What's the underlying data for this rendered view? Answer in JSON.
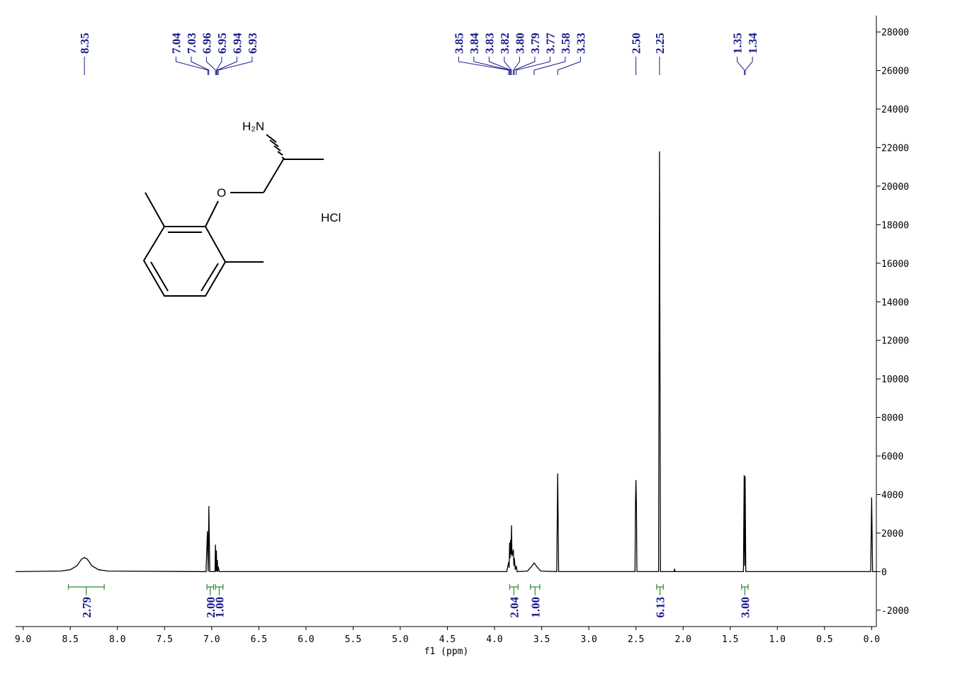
{
  "chart_data": {
    "type": "nmr",
    "x_label": "f1 (ppm)",
    "line_color": "#000000",
    "label_color": "#1a1a8c",
    "integral_color": "#2e8b2e",
    "xlim": [
      9.08,
      -0.05
    ],
    "xticks": [
      {
        "value": 9,
        "label": "9.0"
      },
      {
        "value": 8.5,
        "label": "8.5"
      },
      {
        "value": 8,
        "label": "8.0"
      },
      {
        "value": 7.5,
        "label": "7.5"
      },
      {
        "value": 7,
        "label": "7.0"
      },
      {
        "value": 6.5,
        "label": "6.5"
      },
      {
        "value": 6,
        "label": "6.0"
      },
      {
        "value": 5.5,
        "label": "5.5"
      },
      {
        "value": 5,
        "label": "5.0"
      },
      {
        "value": 4.5,
        "label": "4.5"
      },
      {
        "value": 4,
        "label": "4.0"
      },
      {
        "value": 3.5,
        "label": "3.5"
      },
      {
        "value": 3,
        "label": "3.0"
      },
      {
        "value": 2.5,
        "label": "2.5"
      },
      {
        "value": 2,
        "label": "2.0"
      },
      {
        "value": 1.5,
        "label": "1.5"
      },
      {
        "value": 1,
        "label": "1.0"
      },
      {
        "value": 0.5,
        "label": "0.5"
      },
      {
        "value": 0,
        "label": "0.0"
      }
    ],
    "ylim": [
      -2850,
      28850
    ],
    "yticks": [
      -2000,
      0,
      2000,
      4000,
      6000,
      8000,
      10000,
      12000,
      14000,
      16000,
      18000,
      20000,
      22000,
      24000,
      26000,
      28000
    ],
    "x": [
      9.08,
      8.6,
      8.5,
      8.43,
      8.38,
      8.35,
      8.32,
      8.27,
      8.2,
      8.1,
      7.06,
      7.045,
      7.037,
      7.03,
      7.02,
      6.965,
      6.96,
      6.955,
      6.95,
      6.945,
      6.94,
      6.935,
      6.93,
      6.92,
      3.87,
      3.85,
      3.845,
      3.84,
      3.835,
      3.83,
      3.825,
      3.82,
      3.815,
      3.8,
      3.795,
      3.79,
      3.78,
      3.77,
      3.76,
      3.65,
      3.61,
      3.58,
      3.55,
      3.51,
      3.34,
      3.33,
      3.32,
      2.51,
      2.505,
      2.5,
      2.495,
      2.49,
      2.26,
      2.25,
      2.24,
      2.095,
      2.09,
      2.085,
      1.36,
      1.352,
      1.347,
      1.342,
      1.335,
      0.01,
      0,
      -0.01,
      -0.05
    ],
    "values": [
      0,
      30,
      100,
      300,
      650,
      730,
      650,
      300,
      100,
      30,
      0,
      2100,
      0,
      3400,
      0,
      0,
      1400,
      0,
      1100,
      0,
      600,
      0,
      250,
      0,
      0,
      500,
      200,
      1500,
      700,
      1650,
      900,
      2400,
      800,
      1150,
      300,
      700,
      100,
      300,
      0,
      30,
      250,
      450,
      250,
      30,
      0,
      5100,
      0,
      0,
      3500,
      4750,
      3500,
      0,
      0,
      21800,
      0,
      0,
      150,
      0,
      0,
      5000,
      300,
      4950,
      0,
      0,
      3850,
      0,
      0
    ],
    "peak_labels": [
      [
        8.35
      ],
      [
        7.04,
        7.03,
        6.96,
        6.95,
        6.94,
        6.93
      ],
      [
        3.85,
        3.84,
        3.83,
        3.82,
        {
          "value": 3.8,
          "label": "3.80"
        },
        3.79,
        3.77,
        3.58,
        3.33
      ],
      [
        {
          "value": 2.5,
          "label": "2.50"
        }
      ],
      [
        2.25
      ],
      [
        1.35,
        1.34
      ]
    ],
    "integrals": [
      {
        "range": [
          8.52,
          8.14
        ],
        "value": 2.79
      },
      {
        "range": [
          7.05,
          6.98
        ],
        "value": {
          "value": 2,
          "label": "2.00"
        }
      },
      {
        "range": [
          6.96,
          6.88
        ],
        "value": {
          "value": 1,
          "label": "1.00"
        }
      },
      {
        "range": [
          3.84,
          3.75
        ],
        "value": 2.04
      },
      {
        "range": [
          3.62,
          3.52
        ],
        "value": {
          "value": 1,
          "label": "1.00"
        }
      },
      {
        "range": [
          2.28,
          2.21
        ],
        "value": 6.13
      },
      {
        "range": [
          1.38,
          1.31
        ],
        "value": {
          "value": 3,
          "label": "3.00"
        }
      }
    ]
  },
  "structure": {
    "amine": "H₂N",
    "oxygen": "O",
    "salt": "HCl"
  }
}
